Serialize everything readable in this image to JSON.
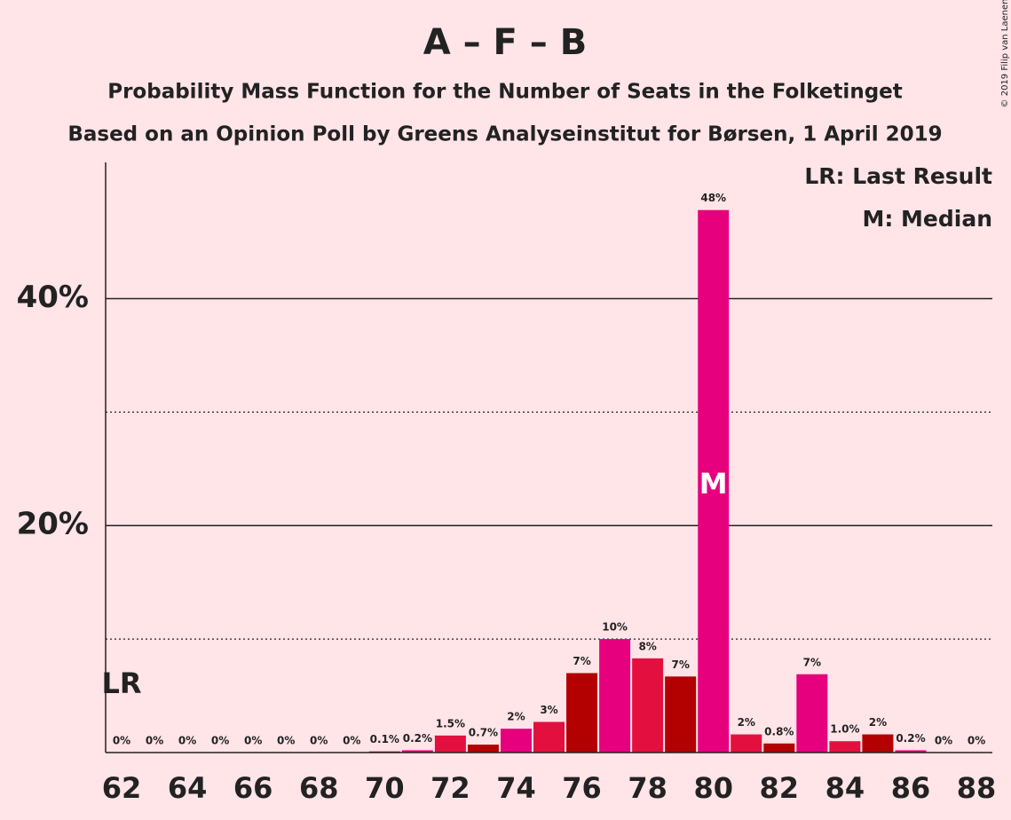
{
  "chart_data": {
    "type": "bar",
    "title": "A – F – B",
    "subtitle": "Probability Mass Function for the Number of Seats in the Folketinget",
    "subtitle2": "Based on an Opinion Poll by Greens Analyseinstitut for Børsen, 1 April 2019",
    "copyright": "© 2019 Filip van Laenen",
    "legend": [
      "LR: Last Result",
      "M: Median"
    ],
    "last_result_label": "LR",
    "last_result_seat": 62,
    "median_label": "M",
    "median_seat": 80,
    "categories": [
      62,
      null,
      64,
      null,
      66,
      null,
      68,
      null,
      70,
      null,
      72,
      null,
      74,
      null,
      76,
      null,
      78,
      null,
      80,
      null,
      82,
      null,
      84,
      null,
      86,
      null,
      88
    ],
    "values": [
      0,
      0,
      0,
      0,
      0,
      0,
      0,
      0,
      0.1,
      0.2,
      1.5,
      0.7,
      2.1,
      2.7,
      7.0,
      10.0,
      8.3,
      6.7,
      47.8,
      1.6,
      0.8,
      6.9,
      1.0,
      1.6,
      0.2,
      0,
      0
    ],
    "value_labels": [
      "0%",
      "0%",
      "0%",
      "0%",
      "0%",
      "0%",
      "0%",
      "0%",
      "0.1%",
      "0.2%",
      "1.5%",
      "0.7%",
      "2%",
      "3%",
      "7%",
      "10%",
      "8%",
      "7%",
      "48%",
      "2%",
      "0.8%",
      "7%",
      "1.0%",
      "2%",
      "0.2%",
      "0%",
      "0%"
    ],
    "colors": [
      "#e3103f",
      "#b30000",
      "#e6007e"
    ],
    "ylim": [
      0,
      52
    ],
    "yticks": [
      {
        "value": 20,
        "label": "20%"
      },
      {
        "value": 40,
        "label": "40%"
      }
    ],
    "minor_yticks": [
      10,
      30
    ],
    "grid": true
  }
}
